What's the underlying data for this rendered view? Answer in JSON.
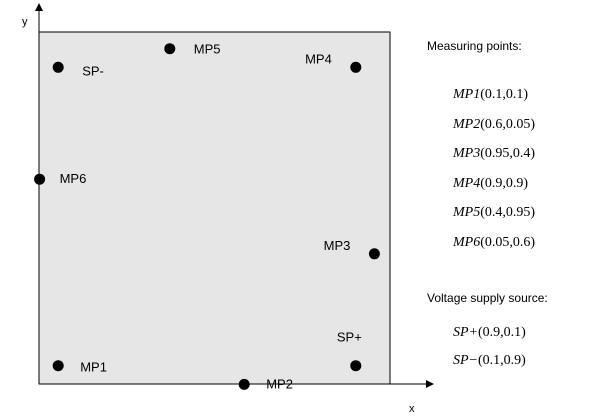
{
  "diagram": {
    "axis_x_label": "x",
    "axis_y_label": "y",
    "point_color": "#000000",
    "plate_fill": "#e6e6e6",
    "points": [
      {
        "name": "MP1",
        "x": 0.1,
        "y": 0.1
      },
      {
        "name": "MP2",
        "x": 0.6,
        "y": 0.05
      },
      {
        "name": "MP3",
        "x": 0.95,
        "y": 0.4
      },
      {
        "name": "MP4",
        "x": 0.9,
        "y": 0.9
      },
      {
        "name": "MP5",
        "x": 0.4,
        "y": 0.95
      },
      {
        "name": "MP6",
        "x": 0.05,
        "y": 0.6
      },
      {
        "name": "SP+",
        "x": 0.9,
        "y": 0.1
      },
      {
        "name": "SP-",
        "x": 0.1,
        "y": 0.9
      }
    ]
  },
  "legend": {
    "measuring_title": "Measuring points:",
    "measuring_items": [
      {
        "name": "MP1",
        "coords": "(0.1,0.1)"
      },
      {
        "name": "MP2",
        "coords": "(0.6,0.05)"
      },
      {
        "name": "MP3",
        "coords": "(0.95,0.4)"
      },
      {
        "name": "MP4",
        "coords": "(0.9,0.9)"
      },
      {
        "name": "MP5",
        "coords": "(0.4,0.95)"
      },
      {
        "name": "MP6",
        "coords": "(0.05,0.6)"
      }
    ],
    "supply_title": "Voltage supply source:",
    "supply_items": [
      {
        "name": "SP+",
        "coords": "(0.9,0.1)"
      },
      {
        "name": "SP−",
        "coords": "(0.1,0.9)"
      }
    ]
  }
}
